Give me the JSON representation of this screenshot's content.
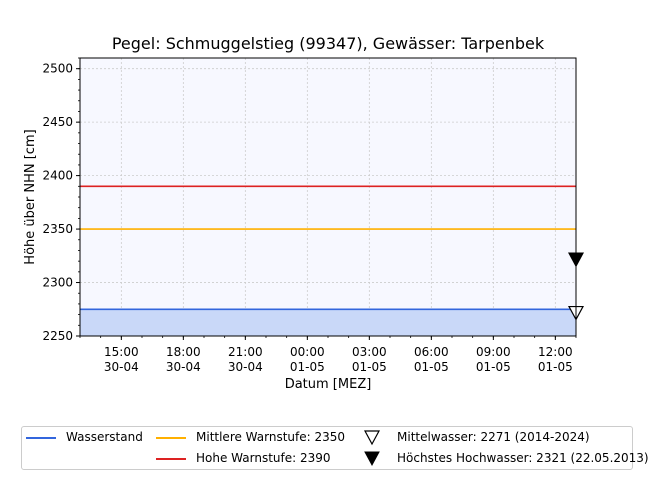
{
  "chart_data": {
    "type": "line",
    "title": "Pegel:  Schmuggelstieg (99347), Gewässer:  Tarpenbek",
    "xlabel": "Datum [MEZ]",
    "ylabel": "Höhe über NHN [cm]",
    "ylim": [
      2250,
      2510
    ],
    "yticks": [
      2250,
      2300,
      2350,
      2400,
      2450,
      2500
    ],
    "xticks": [
      {
        "time": "15:00",
        "date": "30-04"
      },
      {
        "time": "18:00",
        "date": "30-04"
      },
      {
        "time": "21:00",
        "date": "30-04"
      },
      {
        "time": "00:00",
        "date": "01-05"
      },
      {
        "time": "03:00",
        "date": "01-05"
      },
      {
        "time": "06:00",
        "date": "01-05"
      },
      {
        "time": "09:00",
        "date": "01-05"
      },
      {
        "time": "12:00",
        "date": "01-05"
      }
    ],
    "x_range": [
      "30-04 13:00",
      "01-05 13:00"
    ],
    "grid": true,
    "legend_position": "bottom",
    "series": [
      {
        "name": "Wasserstand",
        "color": "#3366dd",
        "fill": "#c9d8f8",
        "values": [
          2275,
          2275
        ]
      },
      {
        "name": "Mittlere Warnstufe: 2350",
        "color": "#ffb000",
        "values": [
          2350,
          2350
        ]
      },
      {
        "name": "Hohe Warnstufe: 2390",
        "color": "#dd2222",
        "values": [
          2390,
          2390
        ]
      }
    ],
    "markers": [
      {
        "name": "Mittelwasser: 2271 (2014-2024)",
        "y": 2271,
        "symbol": "triangle-down-open"
      },
      {
        "name": "Höchstes Hochwasser: 2321 (22.05.2013)",
        "y": 2321,
        "symbol": "triangle-down-filled"
      }
    ]
  }
}
